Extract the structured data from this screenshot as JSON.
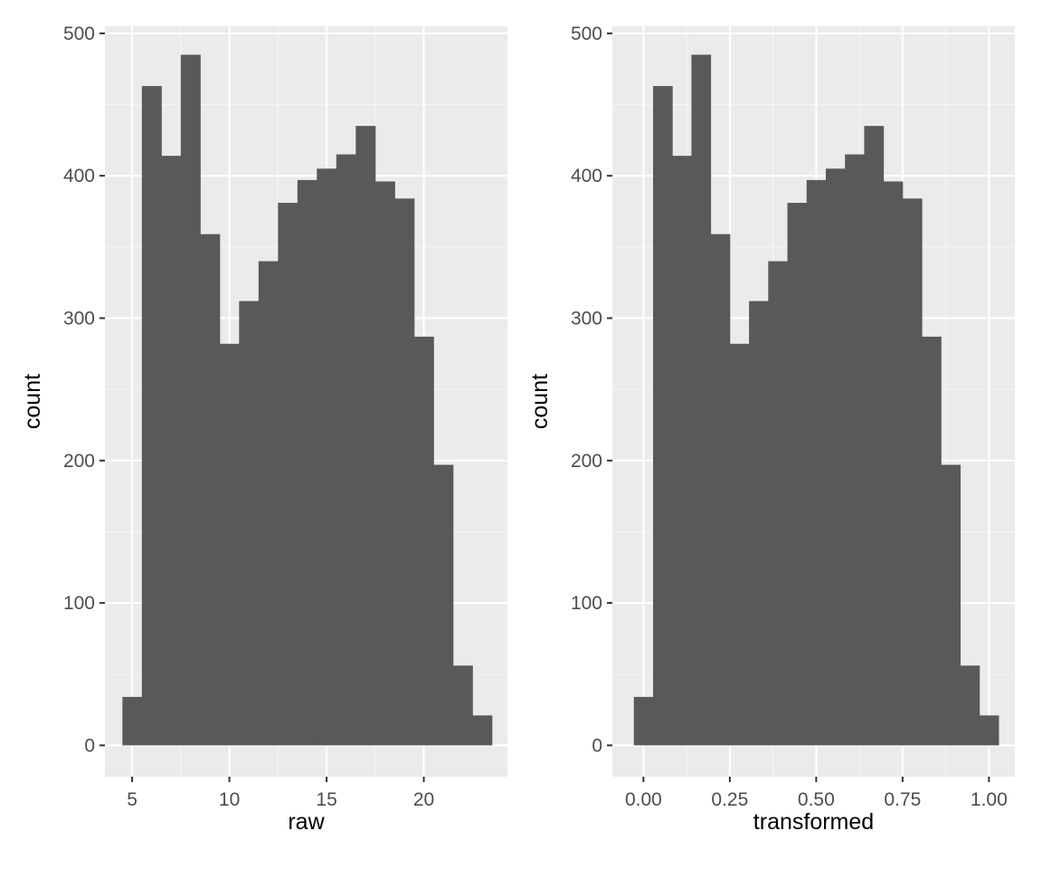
{
  "colors": {
    "panel_background": "#ebebeb",
    "grid_major": "#ffffff",
    "grid_minor": "#f5f5f5",
    "bar_fill": "#595959",
    "tick_label": "#4d4d4d",
    "tick_mark": "#333333",
    "axis_title": "#000000"
  },
  "chart_data": [
    {
      "type": "bar",
      "subtype": "histogram",
      "title": "",
      "xlabel": "raw",
      "ylabel": "count",
      "xlim": [
        3.6,
        24.3
      ],
      "ylim": [
        -22,
        505
      ],
      "x_ticks": [
        5,
        10,
        15,
        20
      ],
      "x_tick_labels": [
        "5",
        "10",
        "15",
        "20"
      ],
      "y_ticks": [
        0,
        100,
        200,
        300,
        400,
        500
      ],
      "y_tick_labels": [
        "0",
        "100",
        "200",
        "300",
        "400",
        "500"
      ],
      "grid": true,
      "bin_edges": [
        4.5,
        5.5,
        6.5,
        7.5,
        8.5,
        9.5,
        10.5,
        11.5,
        12.5,
        13.5,
        14.5,
        15.5,
        16.5,
        17.5,
        18.5,
        19.5,
        20.5,
        21.5,
        22.5,
        23.5
      ],
      "values": [
        34,
        463,
        414,
        485,
        359,
        282,
        312,
        340,
        381,
        397,
        405,
        415,
        435,
        396,
        384,
        287,
        197,
        56,
        21
      ]
    },
    {
      "type": "bar",
      "subtype": "histogram",
      "title": "",
      "xlabel": "transformed",
      "ylabel": "count",
      "xlim": [
        -0.09,
        1.075
      ],
      "ylim": [
        -22,
        505
      ],
      "x_ticks": [
        0.0,
        0.25,
        0.5,
        0.75,
        1.0
      ],
      "x_tick_labels": [
        "0.00",
        "0.25",
        "0.50",
        "0.75",
        "1.00"
      ],
      "y_ticks": [
        0,
        100,
        200,
        300,
        400,
        500
      ],
      "y_tick_labels": [
        "0",
        "100",
        "200",
        "300",
        "400",
        "500"
      ],
      "grid": true,
      "bin_edges": [
        -0.0278,
        0.0278,
        0.0833,
        0.1389,
        0.1944,
        0.25,
        0.3056,
        0.3611,
        0.4167,
        0.4722,
        0.5278,
        0.5833,
        0.6389,
        0.6944,
        0.75,
        0.8056,
        0.8611,
        0.9167,
        0.9722,
        1.0278
      ],
      "values": [
        34,
        463,
        414,
        485,
        359,
        282,
        312,
        340,
        381,
        397,
        405,
        415,
        435,
        396,
        384,
        287,
        197,
        56,
        21
      ]
    }
  ]
}
